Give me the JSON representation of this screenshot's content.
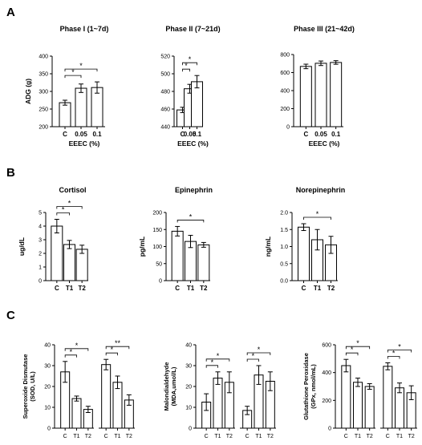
{
  "panels": [
    {
      "letter": "A"
    },
    {
      "letter": "B"
    },
    {
      "letter": "C"
    }
  ],
  "chart_data": [
    {
      "type": "bar",
      "panel": "A",
      "title": "Phase I (1~7d)",
      "ylabel": "ADG (g)",
      "xlabel": "EEEC (%)",
      "categories": [
        "C",
        "0.05",
        "0.1"
      ],
      "values": [
        268,
        309,
        311
      ],
      "errors": [
        7,
        12,
        16
      ],
      "ylim": [
        200,
        400
      ],
      "yticks": [
        200,
        250,
        300,
        350,
        400
      ],
      "sig": [
        {
          "from": 0,
          "to": 1,
          "label": "*"
        },
        {
          "from": 0,
          "to": 2,
          "label": "*"
        }
      ]
    },
    {
      "type": "bar",
      "panel": "A",
      "title": "Phase II (7~21d)",
      "ylabel": "",
      "xlabel": "EEEC (%)",
      "categories": [
        "C",
        "0.05",
        "0.1"
      ],
      "values": [
        459,
        483,
        491
      ],
      "errors": [
        3,
        5,
        7
      ],
      "ylim": [
        440,
        520
      ],
      "yticks": [
        440,
        460,
        480,
        500,
        520
      ],
      "sig": [
        {
          "from": 0,
          "to": 1,
          "label": "*"
        },
        {
          "from": 0,
          "to": 2,
          "label": "*"
        }
      ]
    },
    {
      "type": "bar",
      "panel": "A",
      "title": "Phase III (21~42d)",
      "ylabel": "",
      "xlabel": "EEEC (%)",
      "categories": [
        "C",
        "0.05",
        "0.1"
      ],
      "values": [
        668,
        703,
        712
      ],
      "errors": [
        25,
        25,
        20
      ],
      "ylim": [
        0,
        800
      ],
      "yticks": [
        0,
        200,
        400,
        600,
        800
      ],
      "sig": []
    },
    {
      "type": "bar",
      "panel": "B",
      "title": "Cortisol",
      "ylabel": "ug/dL",
      "xlabel": "",
      "categories": [
        "C",
        "T1",
        "T2"
      ],
      "values": [
        4.0,
        2.65,
        2.3
      ],
      "errors": [
        0.5,
        0.3,
        0.3
      ],
      "ylim": [
        0,
        5
      ],
      "yticks": [
        0,
        1,
        2,
        3,
        4,
        5
      ],
      "sig": [
        {
          "from": 0,
          "to": 1,
          "label": "*"
        },
        {
          "from": 0,
          "to": 2,
          "label": "*"
        }
      ]
    },
    {
      "type": "bar",
      "panel": "B",
      "title": "Epinephrin",
      "ylabel": "pg/mL",
      "xlabel": "",
      "categories": [
        "C",
        "T1",
        "T2"
      ],
      "values": [
        145,
        115,
        105
      ],
      "errors": [
        14,
        18,
        7
      ],
      "ylim": [
        0,
        200
      ],
      "yticks": [
        0,
        50,
        100,
        150,
        200
      ],
      "sig": [
        {
          "from": 0,
          "to": 2,
          "label": "*"
        }
      ]
    },
    {
      "type": "bar",
      "panel": "B",
      "title": "Norepinephrin",
      "ylabel": "ng/mL",
      "xlabel": "",
      "categories": [
        "C",
        "T1",
        "T2"
      ],
      "values": [
        1.57,
        1.2,
        1.05
      ],
      "errors": [
        0.1,
        0.3,
        0.25
      ],
      "ylim": [
        0,
        2
      ],
      "yticks": [
        0.0,
        0.5,
        1.0,
        1.5,
        2.0
      ],
      "sig": [
        {
          "from": 0,
          "to": 2,
          "label": "*"
        }
      ]
    },
    {
      "type": "bar",
      "panel": "C",
      "title": "",
      "ylabel": "Superoxide Dismutase",
      "ylabel2": "(SOD, U/L)",
      "xlabel": "",
      "groups": 2,
      "categories": [
        "C",
        "T1",
        "T2"
      ],
      "series": [
        {
          "values": [
            27,
            14.2,
            9
          ],
          "errors": [
            5,
            1.2,
            1.5
          ]
        },
        {
          "values": [
            30.5,
            22,
            13.5
          ],
          "errors": [
            2.5,
            3,
            2.5
          ]
        }
      ],
      "ylim": [
        0,
        40
      ],
      "yticks": [
        0,
        10,
        20,
        30,
        40
      ],
      "sig": [
        {
          "group": 0,
          "from": 0,
          "to": 1,
          "label": "*"
        },
        {
          "group": 0,
          "from": 0,
          "to": 2,
          "label": "*"
        },
        {
          "group": 1,
          "from": 0,
          "to": 1,
          "label": "*"
        },
        {
          "group": 1,
          "from": 0,
          "to": 2,
          "label": "**"
        }
      ]
    },
    {
      "type": "bar",
      "panel": "C",
      "title": "",
      "ylabel": "Malondialdehyde",
      "ylabel2": "(MDA,umol/L)",
      "xlabel": "",
      "groups": 2,
      "categories": [
        "C",
        "T1",
        "T2"
      ],
      "series": [
        {
          "values": [
            12.5,
            24,
            22
          ],
          "errors": [
            4,
            3,
            5
          ]
        },
        {
          "values": [
            8.5,
            25.5,
            22.5
          ],
          "errors": [
            2,
            4.5,
            4.5
          ]
        }
      ],
      "ylim": [
        0,
        40
      ],
      "yticks": [
        0,
        10,
        20,
        30,
        40
      ],
      "sig": [
        {
          "group": 0,
          "from": 0,
          "to": 1,
          "label": "*"
        },
        {
          "group": 0,
          "from": 0,
          "to": 2,
          "label": "*"
        },
        {
          "group": 1,
          "from": 0,
          "to": 1,
          "label": "*"
        },
        {
          "group": 1,
          "from": 0,
          "to": 2,
          "label": "*"
        }
      ]
    },
    {
      "type": "bar",
      "panel": "C",
      "title": "",
      "ylabel": "Glutathione Peroxidase",
      "ylabel2": "(GPx, nmol/mL)",
      "xlabel": "",
      "groups": 2,
      "categories": [
        "C",
        "T1",
        "T2"
      ],
      "series": [
        {
          "values": [
            450,
            330,
            300
          ],
          "errors": [
            45,
            30,
            20
          ]
        },
        {
          "values": [
            445,
            290,
            255
          ],
          "errors": [
            25,
            35,
            50
          ]
        }
      ],
      "ylim": [
        0,
        600
      ],
      "yticks": [
        0,
        200,
        400,
        600
      ],
      "sig": [
        {
          "group": 0,
          "from": 0,
          "to": 1,
          "label": "*"
        },
        {
          "group": 0,
          "from": 0,
          "to": 2,
          "label": "*"
        },
        {
          "group": 1,
          "from": 0,
          "to": 1,
          "label": "*"
        },
        {
          "group": 1,
          "from": 0,
          "to": 2,
          "label": "*"
        }
      ]
    }
  ]
}
